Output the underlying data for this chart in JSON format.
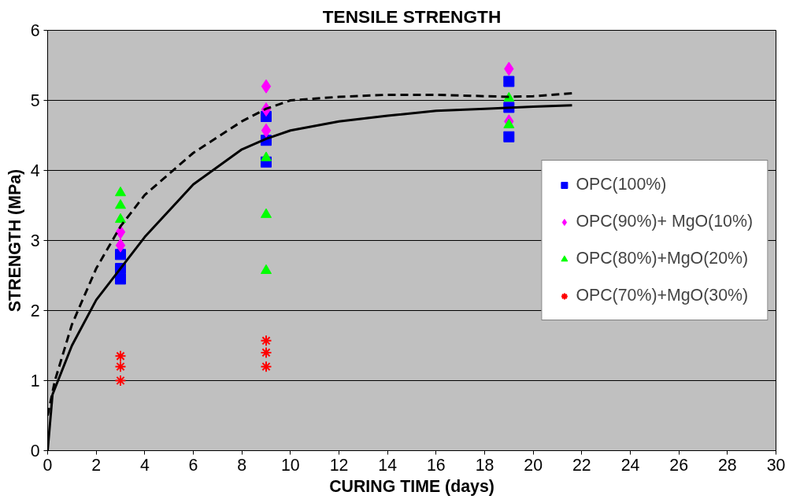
{
  "chart_data": {
    "type": "scatter",
    "title": "TENSILE STRENGTH",
    "xlabel": "CURING TIME (days)",
    "ylabel": "STRENGTH (MPa)",
    "xlim": [
      0,
      30
    ],
    "ylim": [
      0,
      6
    ],
    "xticks": [
      0,
      2,
      4,
      6,
      8,
      10,
      12,
      14,
      16,
      18,
      20,
      22,
      24,
      26,
      28,
      30
    ],
    "yticks": [
      0,
      1,
      2,
      3,
      4,
      5,
      6
    ],
    "grid": "y",
    "legend": "right",
    "series": [
      {
        "name": "OPC(100%)",
        "color": "#0000ff",
        "marker": "square",
        "x": [
          3,
          3,
          3,
          9,
          9,
          9,
          19,
          19,
          19
        ],
        "values": [
          2.45,
          2.6,
          2.8,
          4.77,
          4.43,
          4.12,
          5.27,
          4.9,
          4.48
        ]
      },
      {
        "name": "OPC(90%)+ MgO(10%)",
        "color": "#ff00ff",
        "marker": "diamond",
        "x": [
          3,
          3,
          9,
          9,
          9,
          19,
          19
        ],
        "values": [
          2.93,
          3.12,
          5.2,
          4.87,
          4.57,
          5.45,
          4.7
        ]
      },
      {
        "name": "OPC(80%)+MgO(20%)",
        "color": "#00ff00",
        "marker": "triangle",
        "x": [
          3,
          3,
          3,
          9,
          9,
          9,
          19,
          19
        ],
        "values": [
          3.68,
          3.5,
          3.3,
          4.18,
          3.37,
          2.57,
          5.03,
          4.65
        ]
      },
      {
        "name": "OPC(70%)+MgO(30%)",
        "color": "#ff0000",
        "marker": "cross",
        "x": [
          3,
          3,
          3,
          9,
          9,
          9
        ],
        "values": [
          1.35,
          1.2,
          1.0,
          1.57,
          1.4,
          1.2
        ]
      },
      {
        "type": "line",
        "color": "#000000",
        "line_style": "solid",
        "x": [
          0,
          0.2,
          1,
          2,
          3,
          4,
          6,
          8,
          9,
          10,
          12,
          14,
          16,
          18,
          20,
          21.6
        ],
        "values": [
          0,
          0.8,
          1.5,
          2.15,
          2.6,
          3.05,
          3.8,
          4.3,
          4.45,
          4.57,
          4.7,
          4.78,
          4.85,
          4.88,
          4.91,
          4.93
        ]
      },
      {
        "type": "line",
        "color": "#000000",
        "line_style": "dashed",
        "x": [
          0,
          0.3,
          1,
          2,
          3,
          4,
          6,
          8,
          9,
          10,
          12,
          14,
          16,
          18,
          19,
          20,
          21.6
        ],
        "values": [
          0.5,
          1.0,
          1.8,
          2.6,
          3.2,
          3.65,
          4.25,
          4.7,
          4.88,
          5.0,
          5.05,
          5.08,
          5.08,
          5.06,
          5.05,
          5.06,
          5.1
        ]
      }
    ]
  }
}
